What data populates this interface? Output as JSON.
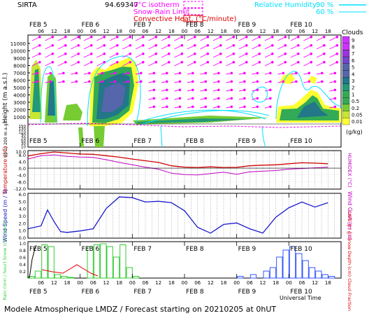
{
  "header": {
    "station": "SIRTA",
    "coords": "94.69347",
    "legend_isotherm": "0°C isotherm",
    "legend_snow_rain": "Snow-Rain Limit",
    "legend_convective": "Convective Heat. (°C/minute)",
    "legend_rh": "Relative Humidity",
    "rh_90": "90 %",
    "rh_60": "60 %"
  },
  "colors": {
    "magenta": "#ff00ff",
    "cyan": "#00e0ff",
    "red": "#e00000",
    "temp_red": "#d00000",
    "humidex": "#c000c0",
    "wind_blue": "#1a1acc",
    "rain_green": "#33cc33",
    "snow_blue": "#3355ff",
    "cloud_scale": [
      "#ffff33",
      "#c8e632",
      "#77cc33",
      "#33aa55",
      "#229977",
      "#227788",
      "#5566aa",
      "#7744cc",
      "#9933dd",
      "#cc33ff"
    ]
  },
  "x_axis": {
    "day_labels": [
      "FEB 5",
      "FEB 6",
      "FEB 7",
      "FEB 8",
      "FEB 9",
      "FEB 10"
    ],
    "hour_labels": [
      "06",
      "12",
      "18",
      "00",
      "06",
      "12",
      "18",
      "00",
      "06",
      "12",
      "18",
      "00",
      "06",
      "12",
      "18",
      "00",
      "06",
      "12",
      "18",
      "00",
      "06",
      "12",
      "18"
    ],
    "bottom_label": "Universal Time"
  },
  "panel_clouds": {
    "ylabel": "Height  (m a.s.l.)",
    "yticks": [
      "11000",
      "10000",
      "9000",
      "8000",
      "7000",
      "6000",
      "5000",
      "4000",
      "3000",
      "2000",
      "1000"
    ],
    "lower_ylabel": "Up to 200 m a.g.l.",
    "lower_yticks": [
      "150",
      "140",
      "130",
      "120",
      "110",
      "100",
      "90",
      "80",
      "70",
      "60",
      "50",
      "40",
      "30",
      "20",
      "10"
    ],
    "colorbar_title": "Clouds",
    "colorbar_ticks": [
      "9",
      "8",
      "7",
      "6",
      "5",
      "4",
      "3",
      "2",
      "1",
      "0.5",
      "0.2",
      "0.05",
      "0.01"
    ],
    "colorbar_unit": "(g/kg)"
  },
  "panel_temp": {
    "ylabel": "Temperature (°C)",
    "ylabel_right": "HUMIDEX (°C)",
    "yticks": [
      "10.0",
      "8.0",
      "4.0",
      "0.0",
      "-4.0",
      "-8.0",
      "-12.0"
    ]
  },
  "panel_wind": {
    "ylabel": "Wind Speed (m / s)",
    "ylabel_right": "Wind Gust (m / s)",
    "yticks": [
      "6.0",
      "5.0",
      "4.0",
      "3.0",
      "2.0",
      "1.0",
      "0.0"
    ]
  },
  "panel_precip": {
    "ylabel": "Rain (mm / hour) Snow (cm / hour)",
    "ylabel_right": "CAPE (J / g) Snow Depth (cm) Cloud Fraction",
    "yticks": [
      "1.0",
      "0.8",
      "0.6",
      "0.4",
      "0.2"
    ]
  },
  "footer": {
    "text": "Modele Atmospherique LMDZ / Forecast starting on 20210205 at 0hUT"
  },
  "chart_data": [
    {
      "type": "line",
      "name": "Temperature",
      "x_hours": [
        0,
        6,
        12,
        18,
        24,
        30,
        36,
        42,
        48,
        54,
        60,
        66,
        72,
        78,
        84,
        90,
        96,
        102,
        108,
        114,
        120,
        126,
        132,
        138
      ],
      "values": [
        7.2,
        8.6,
        9.6,
        9.0,
        8.4,
        8.2,
        7.4,
        6.5,
        5.4,
        4.4,
        3.4,
        1.4,
        0.6,
        0.4,
        0.8,
        0.4,
        0.5,
        1.4,
        1.8,
        2.0,
        2.6,
        3.2,
        3.0,
        2.6
      ],
      "ylim": [
        -12,
        10
      ]
    },
    {
      "type": "line",
      "name": "HUMIDEX",
      "x_hours": [
        0,
        6,
        12,
        18,
        24,
        30,
        36,
        42,
        48,
        54,
        60,
        66,
        72,
        78,
        84,
        90,
        96,
        102,
        108,
        114,
        120,
        126,
        132,
        138
      ],
      "values": [
        5.4,
        7.4,
        7.8,
        7.0,
        6.6,
        6.4,
        5.0,
        3.4,
        2.0,
        0.6,
        -0.6,
        -3.0,
        -3.8,
        -4.0,
        -3.2,
        -2.4,
        -3.6,
        -2.2,
        -1.8,
        -1.4,
        -0.6,
        -0.2,
        0.2,
        0.6
      ],
      "ylim": [
        -12,
        10
      ]
    },
    {
      "type": "line",
      "name": "Wind Speed",
      "x_hours": [
        0,
        6,
        9,
        12,
        15,
        18,
        24,
        30,
        36,
        42,
        48,
        54,
        60,
        66,
        72,
        78,
        84,
        90,
        96,
        102,
        108,
        114,
        120,
        126,
        132,
        138
      ],
      "values": [
        1.2,
        1.6,
        3.8,
        2.2,
        0.8,
        0.7,
        0.9,
        1.2,
        4.0,
        5.6,
        5.5,
        4.9,
        5.0,
        4.8,
        3.7,
        1.4,
        0.6,
        1.8,
        2.0,
        1.2,
        0.6,
        2.8,
        4.1,
        4.9,
        4.2,
        4.8
      ],
      "ylim": [
        0,
        6
      ]
    },
    {
      "type": "bar",
      "name": "Rain",
      "x_hours": [
        0,
        3,
        6,
        9,
        12,
        15,
        18,
        21,
        24,
        27,
        30,
        33,
        36,
        39,
        42,
        45,
        48
      ],
      "values": [
        0.05,
        0.2,
        0.95,
        0.9,
        0.1,
        0.05,
        0.02,
        0.0,
        0.0,
        0.9,
        0.95,
        0.98,
        0.9,
        0.6,
        0.95,
        0.3,
        0.05
      ],
      "ylim": [
        0,
        1
      ]
    },
    {
      "type": "bar",
      "name": "Cloud Fraction",
      "x_hours": [
        96,
        102,
        108,
        111,
        114,
        117,
        120,
        123,
        126,
        129,
        132,
        135,
        138
      ],
      "values": [
        0.05,
        0.1,
        0.2,
        0.3,
        0.6,
        0.8,
        0.9,
        0.7,
        0.5,
        0.3,
        0.2,
        0.1,
        0.05
      ],
      "ylim": [
        0,
        1
      ]
    }
  ]
}
